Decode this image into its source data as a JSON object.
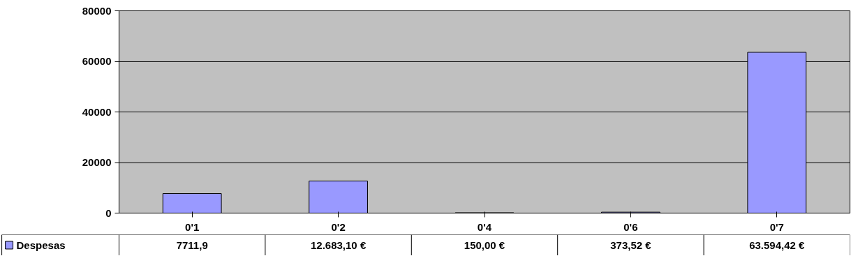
{
  "chart_data": {
    "type": "bar",
    "categories": [
      "0'1",
      "0'2",
      "0'4",
      "0'6",
      "0'7"
    ],
    "series": [
      {
        "name": "Despesas",
        "color": "#9999ff",
        "values": [
          7711.9,
          12683.1,
          150.0,
          373.52,
          63594.42
        ],
        "value_labels": [
          "7711,9",
          "12.683,10 €",
          "150,00 €",
          "373,52 €",
          "63.594,42 €"
        ]
      }
    ],
    "ylim": [
      0,
      80000
    ],
    "yticks": [
      0,
      20000,
      40000,
      60000,
      80000
    ],
    "grid": "y",
    "legend": "bottom left"
  }
}
